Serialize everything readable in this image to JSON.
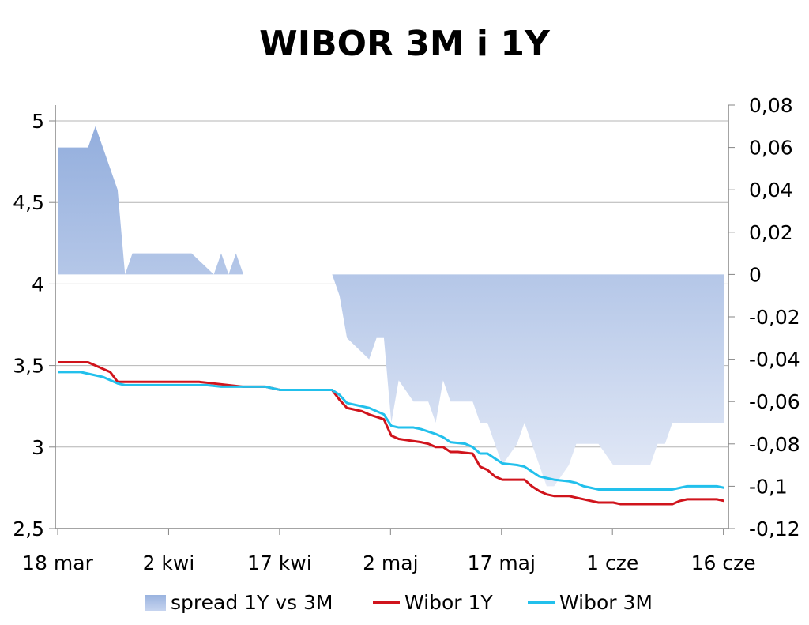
{
  "chart_data": {
    "type": "line",
    "title": "WIBOR 3M i 1Y",
    "x_ticks": [
      "18 mar",
      "2 kwi",
      "17 kwi",
      "2 maj",
      "17 maj",
      "1 cze",
      "16 cze"
    ],
    "y_left_ticks": [
      "5",
      "4,5",
      "4",
      "3,5",
      "3",
      "2,5"
    ],
    "y_right_ticks": [
      "0,08",
      "0,06",
      "0,04",
      "0,02",
      "0",
      "-0,02",
      "-0,04",
      "-0,06",
      "-0,08",
      "-0,1",
      "-0,12"
    ],
    "ylim_left": [
      2.5,
      5.0
    ],
    "ylim_right": [
      -0.12,
      0.08
    ],
    "legend_position": "bottom",
    "series": [
      {
        "name": "spread 1Y vs 3M",
        "type": "area",
        "axis": "right",
        "color": "#9ab3df",
        "points": [
          [
            0,
            0.06
          ],
          [
            4,
            0.06
          ],
          [
            5,
            0.07
          ],
          [
            8,
            0.04
          ],
          [
            9,
            0.0
          ],
          [
            10,
            0.01
          ],
          [
            12,
            0.01
          ],
          [
            18,
            0.01
          ],
          [
            21,
            0.0
          ],
          [
            22,
            0.01
          ],
          [
            23,
            0.0
          ],
          [
            24,
            0.01
          ],
          [
            25,
            0.0
          ],
          [
            37,
            0.0
          ],
          [
            38,
            -0.01
          ],
          [
            39,
            -0.03
          ],
          [
            42,
            -0.04
          ],
          [
            43,
            -0.03
          ],
          [
            44,
            -0.03
          ],
          [
            45,
            -0.07
          ],
          [
            46,
            -0.05
          ],
          [
            48,
            -0.06
          ],
          [
            49,
            -0.06
          ],
          [
            50,
            -0.06
          ],
          [
            51,
            -0.07
          ],
          [
            52,
            -0.05
          ],
          [
            53,
            -0.06
          ],
          [
            56,
            -0.06
          ],
          [
            57,
            -0.07
          ],
          [
            58,
            -0.07
          ],
          [
            60,
            -0.09
          ],
          [
            62,
            -0.08
          ],
          [
            63,
            -0.07
          ],
          [
            64,
            -0.08
          ],
          [
            66,
            -0.1
          ],
          [
            67,
            -0.1
          ],
          [
            69,
            -0.09
          ],
          [
            70,
            -0.08
          ],
          [
            72,
            -0.08
          ],
          [
            73,
            -0.08
          ],
          [
            75,
            -0.09
          ],
          [
            80,
            -0.09
          ],
          [
            81,
            -0.08
          ],
          [
            82,
            -0.08
          ],
          [
            83,
            -0.07
          ],
          [
            84,
            -0.07
          ],
          [
            90,
            -0.07
          ]
        ]
      },
      {
        "name": "Wibor 1Y",
        "type": "line",
        "axis": "left",
        "color": "#d0141c",
        "points": [
          [
            0,
            3.52
          ],
          [
            4,
            3.52
          ],
          [
            7,
            3.46
          ],
          [
            8,
            3.4
          ],
          [
            10,
            3.4
          ],
          [
            19,
            3.4
          ],
          [
            21,
            3.39
          ],
          [
            25,
            3.37
          ],
          [
            28,
            3.37
          ],
          [
            30,
            3.35
          ],
          [
            37,
            3.35
          ],
          [
            38,
            3.29
          ],
          [
            39,
            3.24
          ],
          [
            41,
            3.22
          ],
          [
            42,
            3.2
          ],
          [
            44,
            3.17
          ],
          [
            45,
            3.07
          ],
          [
            46,
            3.05
          ],
          [
            49,
            3.03
          ],
          [
            50,
            3.02
          ],
          [
            51,
            3.0
          ],
          [
            52,
            3.0
          ],
          [
            53,
            2.97
          ],
          [
            54,
            2.97
          ],
          [
            56,
            2.96
          ],
          [
            57,
            2.88
          ],
          [
            58,
            2.86
          ],
          [
            59,
            2.82
          ],
          [
            60,
            2.8
          ],
          [
            63,
            2.8
          ],
          [
            64,
            2.76
          ],
          [
            65,
            2.73
          ],
          [
            66,
            2.71
          ],
          [
            67,
            2.7
          ],
          [
            69,
            2.7
          ],
          [
            70,
            2.69
          ],
          [
            72,
            2.67
          ],
          [
            73,
            2.66
          ],
          [
            75,
            2.66
          ],
          [
            76,
            2.65
          ],
          [
            80,
            2.65
          ],
          [
            83,
            2.65
          ],
          [
            84,
            2.67
          ],
          [
            85,
            2.68
          ],
          [
            89,
            2.68
          ],
          [
            90,
            2.67
          ]
        ]
      },
      {
        "name": "Wibor 3M",
        "type": "line",
        "axis": "left",
        "color": "#22c0ec",
        "points": [
          [
            0,
            3.46
          ],
          [
            3,
            3.46
          ],
          [
            6,
            3.43
          ],
          [
            8,
            3.39
          ],
          [
            9,
            3.38
          ],
          [
            20,
            3.38
          ],
          [
            22,
            3.37
          ],
          [
            25,
            3.37
          ],
          [
            28,
            3.37
          ],
          [
            30,
            3.35
          ],
          [
            37,
            3.35
          ],
          [
            38,
            3.32
          ],
          [
            39,
            3.27
          ],
          [
            42,
            3.24
          ],
          [
            43,
            3.22
          ],
          [
            44,
            3.2
          ],
          [
            45,
            3.13
          ],
          [
            46,
            3.12
          ],
          [
            48,
            3.12
          ],
          [
            49,
            3.11
          ],
          [
            51,
            3.08
          ],
          [
            52,
            3.06
          ],
          [
            53,
            3.03
          ],
          [
            55,
            3.02
          ],
          [
            56,
            3.0
          ],
          [
            57,
            2.96
          ],
          [
            58,
            2.96
          ],
          [
            59,
            2.93
          ],
          [
            60,
            2.9
          ],
          [
            62,
            2.89
          ],
          [
            63,
            2.88
          ],
          [
            64,
            2.85
          ],
          [
            65,
            2.82
          ],
          [
            66,
            2.81
          ],
          [
            67,
            2.8
          ],
          [
            69,
            2.79
          ],
          [
            70,
            2.78
          ],
          [
            71,
            2.76
          ],
          [
            72,
            2.75
          ],
          [
            73,
            2.74
          ],
          [
            83,
            2.74
          ],
          [
            84,
            2.75
          ],
          [
            85,
            2.76
          ],
          [
            89,
            2.76
          ],
          [
            90,
            2.75
          ]
        ]
      }
    ]
  },
  "legend": {
    "area_label": "spread 1Y vs 3M",
    "line1_label": "Wibor 1Y",
    "line2_label": "Wibor 3M"
  }
}
